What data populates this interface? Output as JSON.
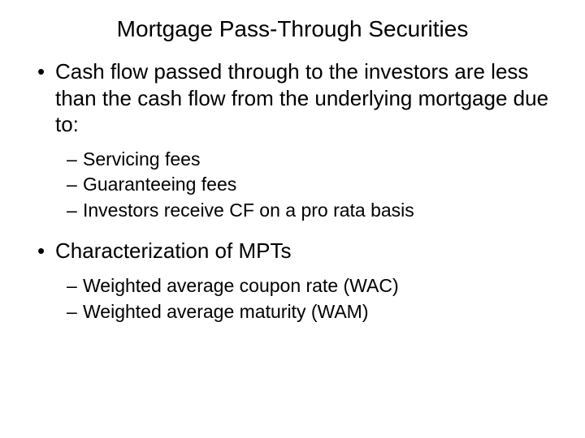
{
  "title": "Mortgage Pass-Through Securities",
  "bullets": {
    "b1": "Cash flow passed through to the investors are less than the cash flow from the underlying mortgage due to:",
    "b1_sub1": "Servicing fees",
    "b1_sub2": "Guaranteeing fees",
    "b1_sub3": "Investors receive CF on a pro rata basis",
    "b2": "Characterization of MPTs",
    "b2_sub1": "Weighted average coupon rate (WAC)",
    "b2_sub2": "Weighted average maturity (WAM)"
  },
  "styling": {
    "background_color": "#ffffff",
    "text_color": "#000000",
    "title_fontsize": 28,
    "l1_fontsize": 26,
    "l2_fontsize": 23,
    "font_family": "Arial"
  }
}
